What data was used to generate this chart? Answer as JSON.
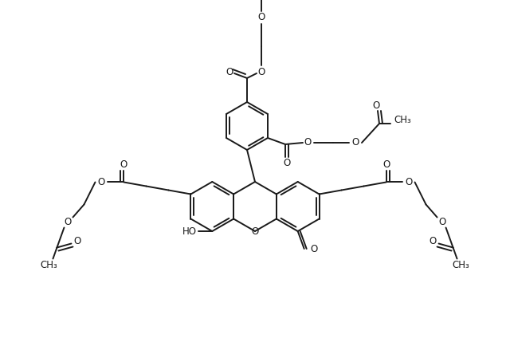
{
  "bg_color": "#ffffff",
  "line_color": "#1a1a1a",
  "line_width": 1.4,
  "font_size": 8.5,
  "figsize": [
    6.4,
    4.44
  ],
  "dpi": 100,
  "xlim": [
    0,
    640
  ],
  "ylim": [
    0,
    444
  ]
}
